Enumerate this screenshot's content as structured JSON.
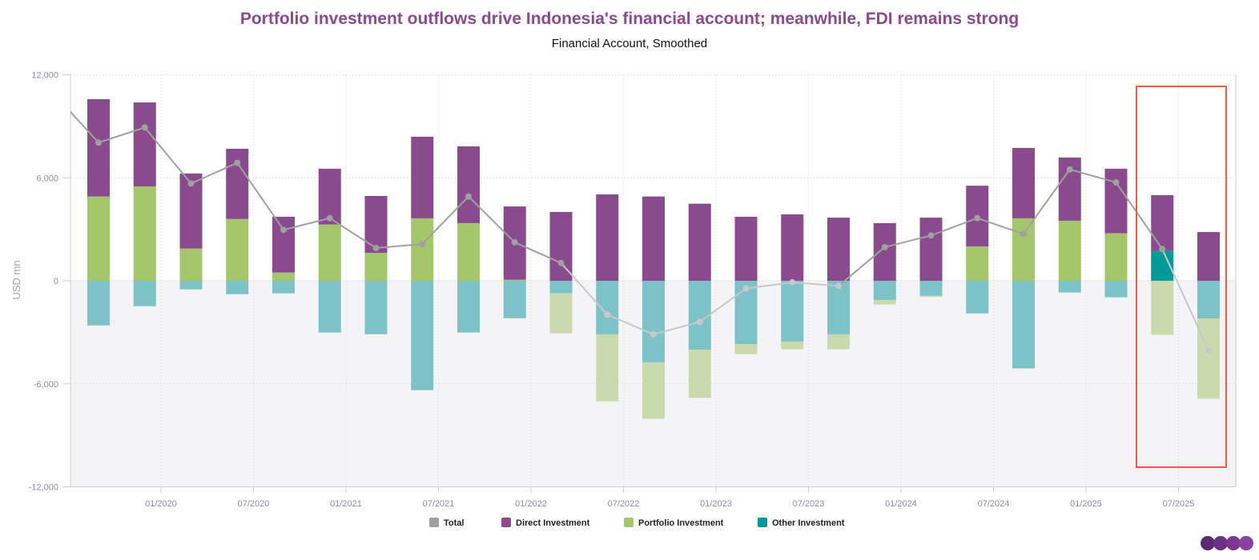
{
  "header": {
    "title": "Portfolio investment outflows drive Indonesia's financial account; meanwhile, FDI remains strong",
    "subtitle": "Financial Account, Smoothed"
  },
  "logo": "CEIC",
  "colors": {
    "title": "#8a4b8e",
    "total": "#a0a0a0",
    "total_negative": "#c8c8c8",
    "direct": "#8a4b8e",
    "portfolio": "#a3c76a",
    "portfolio_negative": "#c9dbad",
    "other": "#069999",
    "other_negative": "#7cc2c6",
    "highlight_box": "#f15a4a",
    "negative_area": "#f4f4f7"
  },
  "chart_data": {
    "type": "bar",
    "stacked": true,
    "title": "Portfolio investment outflows drive Indonesia's financial account; meanwhile, FDI remains strong",
    "subtitle": "Financial Account, Smoothed",
    "ylabel": "USD mn",
    "xlabel": "",
    "ylim": [
      -12000,
      12000
    ],
    "yticks": [
      "12,000",
      "6,000",
      "0",
      "-6,000",
      "-12,000"
    ],
    "xticks": [
      "01/2020",
      "07/2020",
      "01/2021",
      "07/2021",
      "01/2022",
      "07/2022",
      "01/2023",
      "07/2023",
      "01/2024",
      "07/2024",
      "01/2025",
      "07/2025"
    ],
    "grid": true,
    "legend_position": "bottom",
    "categories": [
      "Q3 2019",
      "Q4 2019",
      "Q1 2020",
      "Q2 2020",
      "Q3 2020",
      "Q4 2020",
      "Q1 2021",
      "Q2 2021",
      "Q3 2021",
      "Q4 2021",
      "Q1 2022",
      "Q2 2022",
      "Q3 2022",
      "Q4 2022",
      "Q1 2023",
      "Q2 2023",
      "Q3 2023",
      "Q4 2023",
      "Q1 2024",
      "Q2 2024",
      "Q3 2024",
      "Q4 2024",
      "Q1 2025",
      "Q2 2025",
      "Q3 2025"
    ],
    "series": [
      {
        "name": "Total",
        "type": "line",
        "previous_value": 11000,
        "values": [
          8050,
          8930,
          5670,
          6870,
          2970,
          3650,
          1910,
          2140,
          4910,
          2240,
          1040,
          -1970,
          -3120,
          -2390,
          -450,
          -90,
          -300,
          1960,
          2640,
          3650,
          2730,
          6490,
          5730,
          1850,
          -4050
        ]
      },
      {
        "name": "Direct Investment",
        "type": "bar",
        "values": [
          5670,
          4890,
          4370,
          4090,
          3250,
          3250,
          3310,
          4750,
          4470,
          4270,
          4010,
          5030,
          4910,
          4490,
          3730,
          3870,
          3680,
          3360,
          3680,
          3540,
          4100,
          3680,
          3760,
          3250,
          2840
        ]
      },
      {
        "name": "Portfolio Investment",
        "type": "bar",
        "values": [
          4910,
          5500,
          1880,
          3600,
          480,
          3280,
          1630,
          3640,
          3360,
          60,
          -2330,
          -3900,
          -3290,
          -2810,
          -590,
          -450,
          -870,
          -260,
          -80,
          2000,
          3640,
          3500,
          2770,
          -3150,
          -4680
        ]
      },
      {
        "name": "Other Investment",
        "type": "bar",
        "values": [
          -2600,
          -1480,
          -500,
          -780,
          -730,
          -3010,
          -3110,
          -6370,
          -3010,
          -2180,
          -730,
          -3120,
          -4750,
          -4010,
          -3680,
          -3540,
          -3120,
          -1120,
          -860,
          -1900,
          -5100,
          -680,
          -960,
          1740,
          -2190
        ]
      }
    ],
    "highlighted_categories": [
      "Q2 2025",
      "Q3 2025"
    ]
  }
}
